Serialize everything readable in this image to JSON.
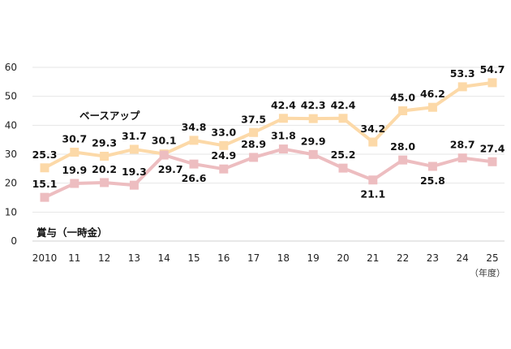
{
  "chart_data": {
    "type": "line",
    "categories": [
      "2010",
      "11",
      "12",
      "13",
      "14",
      "15",
      "16",
      "17",
      "18",
      "19",
      "20",
      "21",
      "22",
      "23",
      "24",
      "25"
    ],
    "x_unit": "（年度）",
    "ylim": [
      0,
      60
    ],
    "yticks": [
      0,
      10,
      20,
      30,
      40,
      50,
      60
    ],
    "grid": true,
    "series": [
      {
        "name": "ベースアップ",
        "color": "#FCD9A8",
        "values": [
          25.3,
          30.7,
          29.3,
          31.7,
          30.1,
          34.8,
          33.0,
          37.5,
          42.4,
          42.3,
          42.4,
          34.2,
          45.0,
          46.2,
          53.3,
          54.7
        ],
        "labels": [
          "25.3",
          "30.7",
          "29.3",
          "31.7",
          "30.1",
          "34.8",
          "33.0",
          "37.5",
          "42.4",
          "42.3",
          "42.4",
          "34.2",
          "45.0",
          "46.2",
          "53.3",
          "54.7"
        ]
      },
      {
        "name": "賞与（一時金）",
        "color": "#EDBDC0",
        "values": [
          15.1,
          19.9,
          20.2,
          19.3,
          29.7,
          26.6,
          24.9,
          28.9,
          31.8,
          29.9,
          25.2,
          21.1,
          28.0,
          25.8,
          28.7,
          27.4
        ],
        "labels": [
          "15.1",
          "19.9",
          "20.2",
          "19.3",
          "29.7",
          "26.6",
          "24.9",
          "28.9",
          "31.8",
          "29.9",
          "25.2",
          "21.1",
          "28.0",
          "25.8",
          "28.7",
          "27.4"
        ]
      }
    ]
  }
}
